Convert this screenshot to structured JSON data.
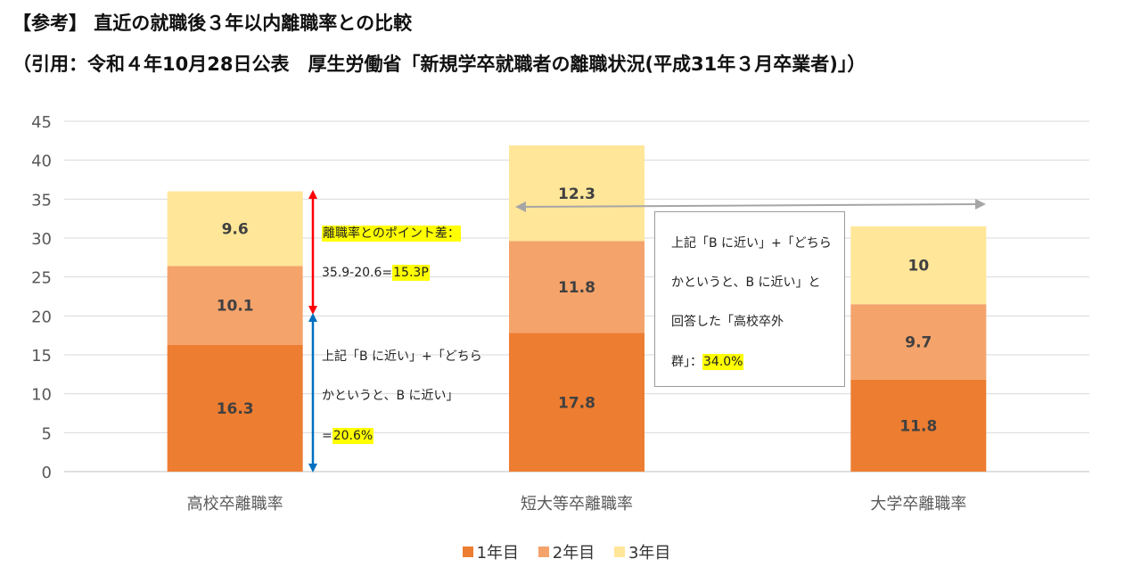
{
  "header": {
    "title_line1": "【参考】 直近の就職後３年以内離職率との比較",
    "title_line2": "（引用：令和４年10月28日公表　厚生労働省「新規学卒就職者の離職状況(平成31年３月卒業者)」）"
  },
  "chart_data": {
    "type": "bar",
    "stacked": true,
    "categories": [
      "高校卒離職率",
      "短大等卒離職率",
      "大学卒離職率"
    ],
    "series": [
      {
        "name": "1年目",
        "values": [
          16.3,
          17.8,
          11.8
        ],
        "labels": [
          "16.3",
          "17.8",
          "11.8"
        ],
        "color": "#ED7D31"
      },
      {
        "name": "2年目",
        "values": [
          10.1,
          11.8,
          9.7
        ],
        "labels": [
          "10.1",
          "11.8",
          "9.7"
        ],
        "color": "#F4A36B"
      },
      {
        "name": "3年目",
        "values": [
          9.6,
          12.3,
          10.0
        ],
        "labels": [
          "9.6",
          "12.3",
          "10"
        ],
        "color": "#FFE699"
      }
    ],
    "ylim": [
      0,
      45
    ],
    "yticks": [
      "0",
      "5",
      "10",
      "15",
      "20",
      "25",
      "30",
      "35",
      "40",
      "45"
    ],
    "grid": true,
    "legend_position": "bottom"
  },
  "annotations": {
    "diff": {
      "line1": "離職率とのポイント差：",
      "line2_prefix": "35.9-20.6=",
      "line2_value": "15.3P"
    },
    "near": {
      "line1": "上記「B に近い」+「どちら",
      "line2": "かというと、B に近い」",
      "line3_prefix": "=",
      "line3_value": "20.6%"
    },
    "callout": {
      "line1": "上記「B に近い」+「どちら",
      "line2": "かというと、B に近い」と",
      "line3": "回答した「高校卒外",
      "line4_prefix": "群」：",
      "line4_value": "34.0%"
    }
  },
  "colors": {
    "red_arrow": "#FF0000",
    "blue_arrow": "#0070C0",
    "gray_arrow": "#A6A6A6",
    "highlight": "#FFFF00",
    "grid": "#D9D9D9"
  }
}
